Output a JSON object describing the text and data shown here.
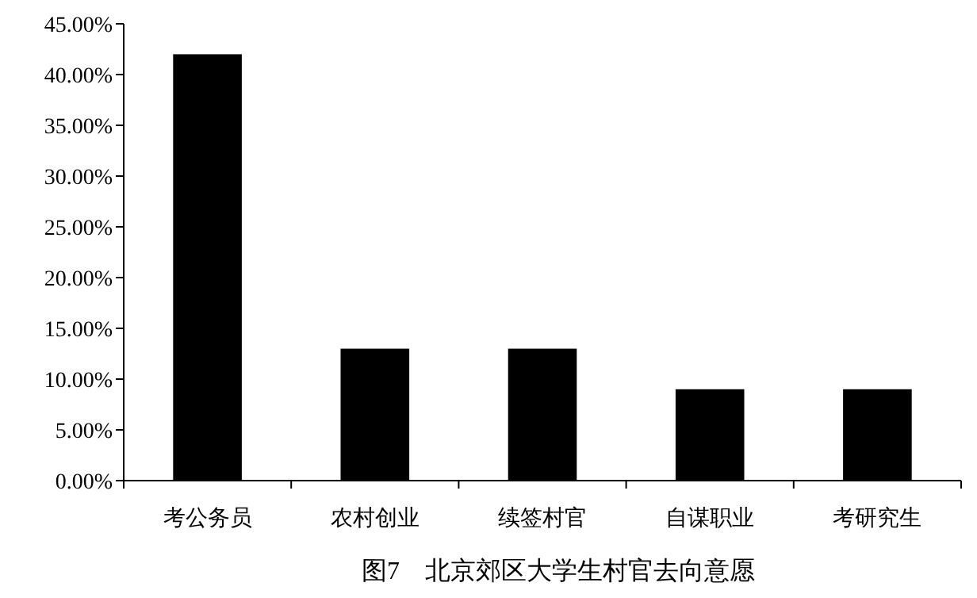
{
  "chart_data": {
    "type": "bar",
    "title": "图7　北京郊区大学生村官去向意愿",
    "categories": [
      "考公务员",
      "农村创业",
      "续签村官",
      "自谋职业",
      "考研究生"
    ],
    "values": [
      42,
      13,
      13,
      9,
      9
    ],
    "color": "#000000",
    "ylim": [
      0,
      45
    ],
    "yticks": [
      {
        "value": 0,
        "label": "0.00%"
      },
      {
        "value": 5,
        "label": "5.00%"
      },
      {
        "value": 10,
        "label": "10.00%"
      },
      {
        "value": 15,
        "label": "15.00%"
      },
      {
        "value": 20,
        "label": "20.00%"
      },
      {
        "value": 25,
        "label": "25.00%"
      },
      {
        "value": 30,
        "label": "30.00%"
      },
      {
        "value": 35,
        "label": "35.00%"
      },
      {
        "value": 40,
        "label": "40.00%"
      },
      {
        "value": 45,
        "label": "45.00%"
      }
    ]
  }
}
